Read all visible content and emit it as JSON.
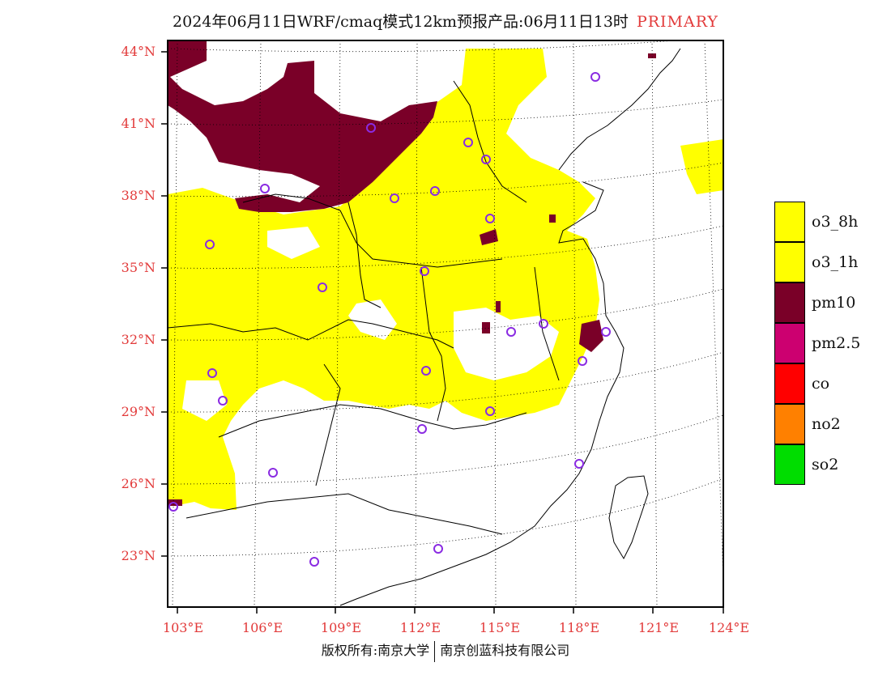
{
  "title": {
    "main": "2024年06月11日WRF/cmaq模式12km预报产品:06月11日13时",
    "tag": "PRIMARY"
  },
  "axes": {
    "lat_labels": [
      "44°N",
      "41°N",
      "38°N",
      "35°N",
      "32°N",
      "29°N",
      "26°N",
      "23°N"
    ],
    "lon_labels": [
      "103°E",
      "106°E",
      "109°E",
      "112°E",
      "115°E",
      "118°E",
      "121°E",
      "124°E"
    ]
  },
  "legend": {
    "items": [
      {
        "label": "o3_8h",
        "color": "#ffff00"
      },
      {
        "label": "o3_1h",
        "color": "#ffff00"
      },
      {
        "label": "pm10",
        "color": "#7a0028"
      },
      {
        "label": "pm2.5",
        "color": "#cc0070"
      },
      {
        "label": "co",
        "color": "#ff0000"
      },
      {
        "label": "no2",
        "color": "#ff8000"
      },
      {
        "label": "so2",
        "color": "#00dd00"
      }
    ]
  },
  "footer": {
    "left": "版权所有:南京大学",
    "right": "南京创蓝科技有限公司"
  },
  "colors": {
    "accent": "#e23a3a",
    "ozone": "#ffff00",
    "pm10": "#7a0028",
    "station_marker": "#8a2be2"
  }
}
